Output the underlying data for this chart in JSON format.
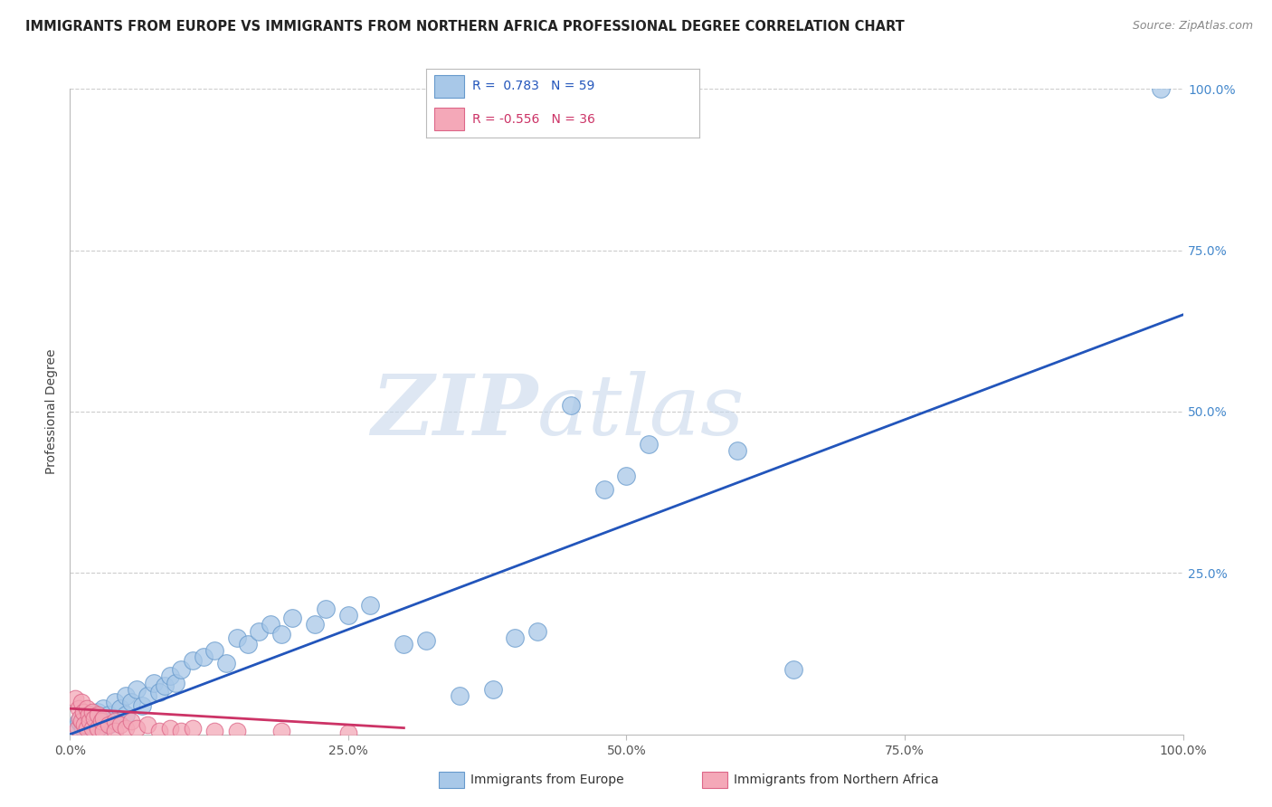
{
  "title": "IMMIGRANTS FROM EUROPE VS IMMIGRANTS FROM NORTHERN AFRICA PROFESSIONAL DEGREE CORRELATION CHART",
  "source": "Source: ZipAtlas.com",
  "ylabel": "Professional Degree",
  "xlim": [
    0,
    1.0
  ],
  "ylim": [
    0,
    1.0
  ],
  "europe_color": "#a8c8e8",
  "europe_edge": "#6699cc",
  "africa_color": "#f4a8b8",
  "africa_edge": "#dd6688",
  "trendline_europe_color": "#2255bb",
  "trendline_africa_color": "#cc3366",
  "background_color": "#ffffff",
  "grid_color": "#cccccc",
  "watermark_zip": "ZIP",
  "watermark_atlas": "atlas",
  "europe_R": 0.783,
  "europe_N": 59,
  "africa_R": -0.556,
  "africa_N": 36,
  "europe_trendline": [
    0.0,
    0.0,
    1.0,
    0.65
  ],
  "africa_trendline": [
    0.0,
    0.04,
    0.3,
    0.01
  ],
  "europe_points": [
    [
      0.005,
      0.01
    ],
    [
      0.008,
      0.02
    ],
    [
      0.01,
      0.015
    ],
    [
      0.012,
      0.01
    ],
    [
      0.015,
      0.025
    ],
    [
      0.015,
      0.015
    ],
    [
      0.018,
      0.02
    ],
    [
      0.02,
      0.03
    ],
    [
      0.02,
      0.015
    ],
    [
      0.022,
      0.02
    ],
    [
      0.025,
      0.035
    ],
    [
      0.025,
      0.01
    ],
    [
      0.028,
      0.025
    ],
    [
      0.03,
      0.04
    ],
    [
      0.03,
      0.02
    ],
    [
      0.035,
      0.03
    ],
    [
      0.035,
      0.015
    ],
    [
      0.04,
      0.05
    ],
    [
      0.04,
      0.025
    ],
    [
      0.045,
      0.04
    ],
    [
      0.05,
      0.06
    ],
    [
      0.05,
      0.03
    ],
    [
      0.055,
      0.05
    ],
    [
      0.06,
      0.07
    ],
    [
      0.065,
      0.045
    ],
    [
      0.07,
      0.06
    ],
    [
      0.075,
      0.08
    ],
    [
      0.08,
      0.065
    ],
    [
      0.085,
      0.075
    ],
    [
      0.09,
      0.09
    ],
    [
      0.095,
      0.08
    ],
    [
      0.1,
      0.1
    ],
    [
      0.11,
      0.115
    ],
    [
      0.12,
      0.12
    ],
    [
      0.13,
      0.13
    ],
    [
      0.14,
      0.11
    ],
    [
      0.15,
      0.15
    ],
    [
      0.16,
      0.14
    ],
    [
      0.17,
      0.16
    ],
    [
      0.18,
      0.17
    ],
    [
      0.19,
      0.155
    ],
    [
      0.2,
      0.18
    ],
    [
      0.22,
      0.17
    ],
    [
      0.23,
      0.195
    ],
    [
      0.25,
      0.185
    ],
    [
      0.27,
      0.2
    ],
    [
      0.3,
      0.14
    ],
    [
      0.32,
      0.145
    ],
    [
      0.35,
      0.06
    ],
    [
      0.38,
      0.07
    ],
    [
      0.4,
      0.15
    ],
    [
      0.42,
      0.16
    ],
    [
      0.45,
      0.51
    ],
    [
      0.48,
      0.38
    ],
    [
      0.5,
      0.4
    ],
    [
      0.52,
      0.45
    ],
    [
      0.6,
      0.44
    ],
    [
      0.65,
      0.1
    ],
    [
      0.98,
      1.0
    ]
  ],
  "africa_points": [
    [
      0.005,
      0.055
    ],
    [
      0.007,
      0.01
    ],
    [
      0.008,
      0.04
    ],
    [
      0.009,
      0.025
    ],
    [
      0.01,
      0.05
    ],
    [
      0.01,
      0.02
    ],
    [
      0.012,
      0.035
    ],
    [
      0.013,
      0.015
    ],
    [
      0.015,
      0.04
    ],
    [
      0.015,
      0.01
    ],
    [
      0.017,
      0.03
    ],
    [
      0.018,
      0.02
    ],
    [
      0.02,
      0.035
    ],
    [
      0.02,
      0.01
    ],
    [
      0.022,
      0.025
    ],
    [
      0.025,
      0.03
    ],
    [
      0.025,
      0.01
    ],
    [
      0.028,
      0.02
    ],
    [
      0.03,
      0.025
    ],
    [
      0.03,
      0.005
    ],
    [
      0.035,
      0.015
    ],
    [
      0.04,
      0.02
    ],
    [
      0.04,
      0.005
    ],
    [
      0.045,
      0.015
    ],
    [
      0.05,
      0.01
    ],
    [
      0.055,
      0.02
    ],
    [
      0.06,
      0.01
    ],
    [
      0.07,
      0.015
    ],
    [
      0.08,
      0.005
    ],
    [
      0.09,
      0.01
    ],
    [
      0.1,
      0.005
    ],
    [
      0.11,
      0.01
    ],
    [
      0.13,
      0.005
    ],
    [
      0.15,
      0.005
    ],
    [
      0.19,
      0.005
    ],
    [
      0.25,
      0.002
    ]
  ]
}
